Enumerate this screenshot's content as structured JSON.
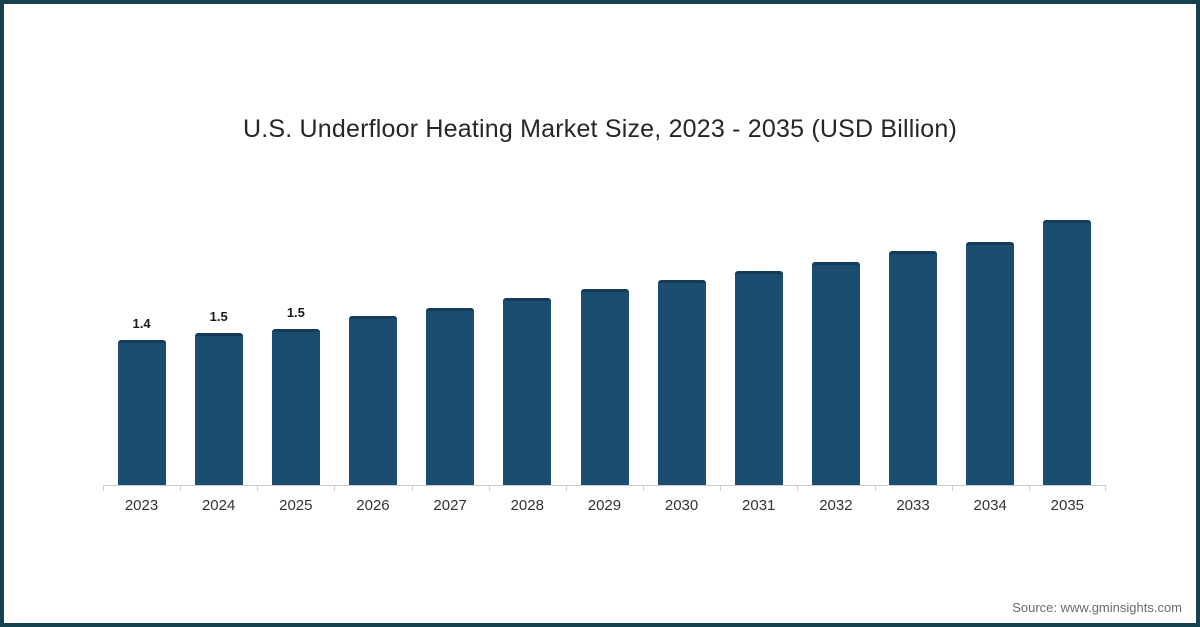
{
  "title": "U.S. Underfloor Heating Market Size, 2023 - 2035 (USD Billion)",
  "source": "Source: www.gminsights.com",
  "colors": {
    "bar_fill": "#1b4d70",
    "bar_cap": "#143c5a",
    "frame_border": "#15404d",
    "axis": "#cccccc"
  },
  "chart_data": {
    "type": "bar",
    "title": "U.S. Underfloor Heating Market Size, 2023 - 2035 (USD Billion)",
    "categories": [
      "2023",
      "2024",
      "2025",
      "2026",
      "2027",
      "2028",
      "2029",
      "2030",
      "2031",
      "2032",
      "2033",
      "2034",
      "2035"
    ],
    "values": [
      1.4,
      1.47,
      1.51,
      1.63,
      1.71,
      1.81,
      1.89,
      1.98,
      2.07,
      2.15,
      2.26,
      2.35,
      2.56
    ],
    "data_labels": [
      "1.4",
      "1.5",
      "1.5",
      "",
      "",
      "",
      "",
      "",
      "",
      "",
      "",
      "",
      ""
    ],
    "xlabel": "",
    "ylabel": "",
    "ylim": [
      0,
      3
    ],
    "grid": false,
    "legend": false
  }
}
